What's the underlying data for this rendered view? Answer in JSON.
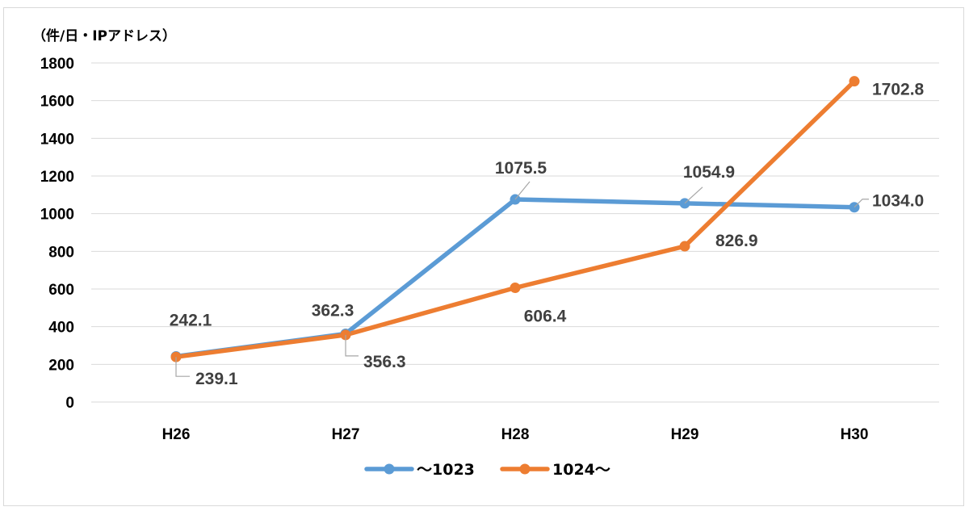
{
  "chart_data": {
    "type": "line",
    "unit_label": "（件/日・IPアドレス）",
    "categories": [
      "H26",
      "H27",
      "H28",
      "H29",
      "H30"
    ],
    "ylim": [
      0,
      1800
    ],
    "yticks": [
      0,
      200,
      400,
      600,
      800,
      1000,
      1200,
      1400,
      1600,
      1800
    ],
    "grid": true,
    "legend_position": "bottom",
    "series": [
      {
        "name": "～1023",
        "color": "#5b9bd5",
        "values": [
          242.1,
          362.3,
          1075.5,
          1054.9,
          1034.0
        ],
        "labels": [
          "242.1",
          "362.3",
          "1075.5",
          "1054.9",
          "1034.0"
        ]
      },
      {
        "name": "1024～",
        "color": "#ed7d31",
        "values": [
          239.1,
          356.3,
          606.4,
          826.9,
          1702.8
        ],
        "labels": [
          "239.1",
          "356.3",
          "606.4",
          "826.9",
          "1702.8"
        ]
      }
    ]
  }
}
